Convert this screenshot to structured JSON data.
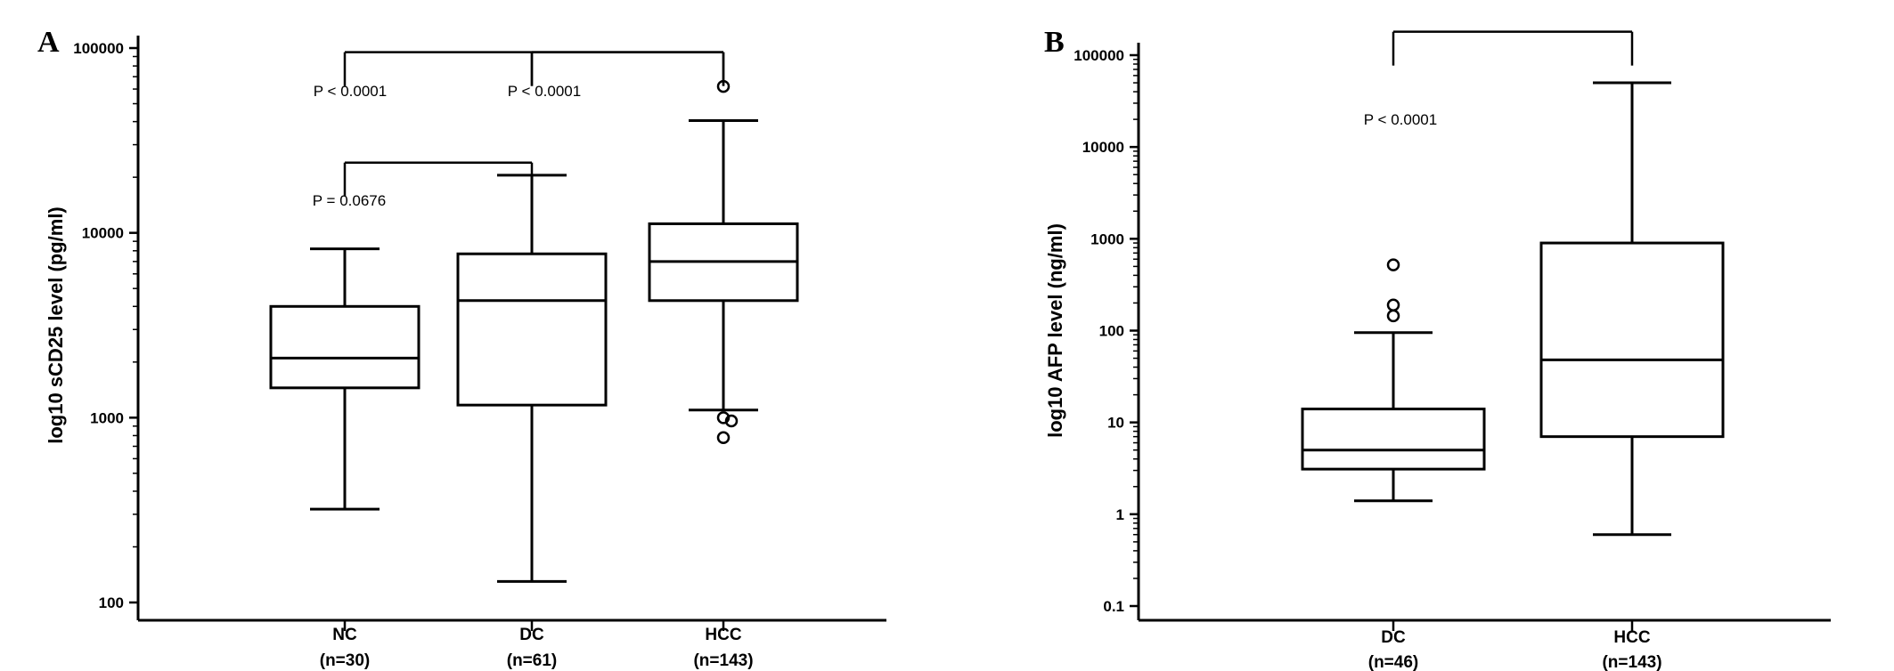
{
  "colors": {
    "ink": "#000000",
    "background": "#ffffff"
  },
  "chart_data": [
    {
      "panel": "A",
      "type": "box",
      "scale": "log",
      "ylabel": "log10 sCD25 level (pg/ml)",
      "ylim": [
        100,
        100000
      ],
      "yticks": [
        100,
        1000,
        10000,
        100000
      ],
      "ytick_labels": [
        "100",
        "1000",
        "10000",
        "100000"
      ],
      "grid": false,
      "categories": [
        {
          "name": "NC",
          "n": "(n=30)"
        },
        {
          "name": "DC",
          "n": "(n=61)"
        },
        {
          "name": "HCC",
          "n": "(n=143)"
        }
      ],
      "boxes": [
        {
          "category": "NC",
          "whisker_low": 320,
          "q1": 1450,
          "median": 2100,
          "q3": 4000,
          "whisker_high": 8200,
          "outliers": []
        },
        {
          "category": "DC",
          "whisker_low": 130,
          "q1": 1170,
          "median": 4300,
          "q3": 7700,
          "whisker_high": 20500,
          "outliers": []
        },
        {
          "category": "HCC",
          "whisker_low": 1100,
          "q1": 4300,
          "median": 7000,
          "q3": 11200,
          "whisker_high": 40500,
          "outliers": [
            62000,
            1000,
            960,
            780
          ]
        }
      ],
      "comparisons": [
        {
          "from": "NC",
          "to": "HCC",
          "bracket_level": 95000,
          "label": "P < 0.0001",
          "label_anchor": "NC"
        },
        {
          "from": "DC",
          "to": "HCC",
          "bracket_level": 95000,
          "label": "P < 0.0001",
          "label_anchor": "DC"
        },
        {
          "from": "NC",
          "to": "DC",
          "bracket_level": 24000,
          "label": "P = 0.0676",
          "label_anchor": "NC"
        }
      ]
    },
    {
      "panel": "B",
      "type": "box",
      "scale": "log",
      "ylabel": "log10 AFP level (ng/ml)",
      "ylim": [
        0.1,
        100000
      ],
      "yticks": [
        0.1,
        1,
        10,
        100,
        1000,
        10000,
        100000
      ],
      "ytick_labels": [
        "0.1",
        "1",
        "10",
        "100",
        "1000",
        "10000",
        "100000"
      ],
      "grid": false,
      "categories": [
        {
          "name": "DC",
          "n": "(n=46)"
        },
        {
          "name": "HCC",
          "n": "(n=143)"
        }
      ],
      "boxes": [
        {
          "category": "DC",
          "whisker_low": 1.4,
          "q1": 3.1,
          "median": 5.0,
          "q3": 14,
          "whisker_high": 95,
          "outliers": [
            520,
            190,
            145
          ]
        },
        {
          "category": "HCC",
          "whisker_low": 0.6,
          "q1": 7,
          "median": 48,
          "q3": 900,
          "whisker_high": 50000,
          "outliers": []
        }
      ],
      "comparisons": [
        {
          "from": "DC",
          "to": "HCC",
          "bracket_level": 180000,
          "label": "P < 0.0001",
          "label_anchor": "DC"
        }
      ]
    }
  ]
}
